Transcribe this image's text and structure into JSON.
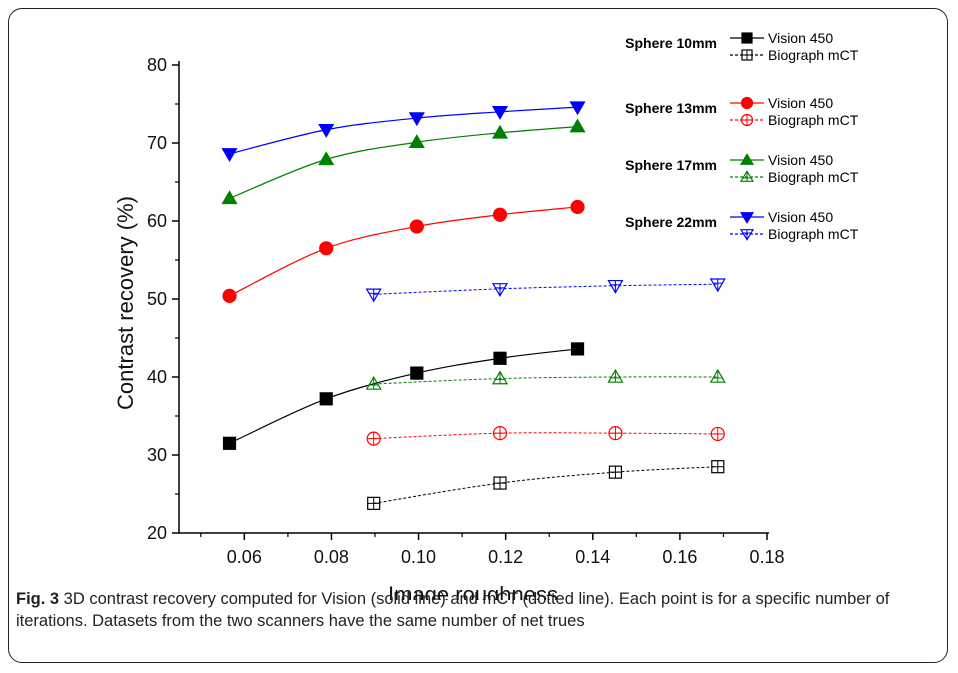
{
  "chart_data": {
    "type": "line",
    "xlabel": "Image roughness",
    "ylabel": "Contrast recovery (%)",
    "xlim": [
      0.045,
      0.18
    ],
    "ylim": [
      20,
      80
    ],
    "xticks": [
      {
        "v": 0.06,
        "label": "0.06"
      },
      {
        "v": 0.08,
        "label": "0.08"
      },
      {
        "v": 0.1,
        "label": "0.10"
      },
      {
        "v": 0.12,
        "label": "0.12"
      },
      {
        "v": 0.14,
        "label": "0.14"
      },
      {
        "v": 0.16,
        "label": "0.16"
      },
      {
        "v": 0.18,
        "label": "0.18"
      }
    ],
    "yticks": [
      {
        "v": 20,
        "label": "20"
      },
      {
        "v": 30,
        "label": "30"
      },
      {
        "v": 40,
        "label": "40"
      },
      {
        "v": 50,
        "label": "50"
      },
      {
        "v": 60,
        "label": "60"
      },
      {
        "v": 70,
        "label": "70"
      },
      {
        "v": 80,
        "label": "80"
      }
    ],
    "grid": false,
    "legend_position": "top-right",
    "series": [
      {
        "name": "Vision 450",
        "group": "Sphere 10mm",
        "color": "#000000",
        "marker": "square",
        "filled": true,
        "style": "solid",
        "x": [
          0.0566,
          0.0788,
          0.0996,
          0.1187,
          0.1365
        ],
        "y": [
          31.5,
          37.2,
          40.5,
          42.4,
          43.6
        ]
      },
      {
        "name": "Biograph mCT",
        "group": "Sphere 10mm",
        "color": "#000000",
        "marker": "square",
        "filled": false,
        "style": "dotted",
        "x": [
          0.0897,
          0.1187,
          0.1452,
          0.1687
        ],
        "y": [
          23.8,
          26.4,
          27.8,
          28.5
        ]
      },
      {
        "name": "Vision 450",
        "group": "Sphere 13mm",
        "color": "#ff0000",
        "marker": "circle",
        "filled": true,
        "style": "solid",
        "x": [
          0.0566,
          0.0788,
          0.0996,
          0.1187,
          0.1365
        ],
        "y": [
          50.4,
          56.5,
          59.3,
          60.8,
          61.8
        ]
      },
      {
        "name": "Biograph mCT",
        "group": "Sphere 13mm",
        "color": "#ff0000",
        "marker": "circle",
        "filled": false,
        "style": "dotted",
        "x": [
          0.0897,
          0.1187,
          0.1452,
          0.1687
        ],
        "y": [
          32.1,
          32.8,
          32.8,
          32.7
        ]
      },
      {
        "name": "Vision 450",
        "group": "Sphere 17mm",
        "color": "#008000",
        "marker": "triangle-up",
        "filled": true,
        "style": "solid",
        "x": [
          0.0566,
          0.0788,
          0.0996,
          0.1187,
          0.1365
        ],
        "y": [
          62.9,
          67.9,
          70.1,
          71.3,
          72.1
        ]
      },
      {
        "name": "Biograph mCT",
        "group": "Sphere 17mm",
        "color": "#008000",
        "marker": "triangle-up",
        "filled": false,
        "style": "dotted",
        "x": [
          0.0897,
          0.1187,
          0.1452,
          0.1687
        ],
        "y": [
          39.1,
          39.8,
          40.0,
          40.0
        ]
      },
      {
        "name": "Vision 450",
        "group": "Sphere 22mm",
        "color": "#0000ff",
        "marker": "triangle-down",
        "filled": true,
        "style": "solid",
        "x": [
          0.0566,
          0.0788,
          0.0996,
          0.1187,
          0.1365
        ],
        "y": [
          68.6,
          71.7,
          73.2,
          74.0,
          74.6
        ]
      },
      {
        "name": "Biograph mCT",
        "group": "Sphere 22mm",
        "color": "#0000ff",
        "marker": "triangle-down",
        "filled": false,
        "style": "dotted",
        "x": [
          0.0897,
          0.1187,
          0.1452,
          0.1687
        ],
        "y": [
          50.6,
          51.3,
          51.7,
          51.9
        ]
      }
    ],
    "legend_groups": [
      {
        "title": "Sphere 10mm",
        "entries": [
          0,
          1
        ]
      },
      {
        "title": "Sphere 13mm",
        "entries": [
          2,
          3
        ]
      },
      {
        "title": "Sphere 17mm",
        "entries": [
          4,
          5
        ]
      },
      {
        "title": "Sphere 22mm",
        "entries": [
          6,
          7
        ]
      }
    ]
  },
  "caption": {
    "label": "Fig. 3",
    "text": " 3D contrast recovery computed for Vision (solid line) and mCT (dotted line). Each point is for a specific number of iterations. Datasets from the two scanners have the same number of net trues"
  }
}
